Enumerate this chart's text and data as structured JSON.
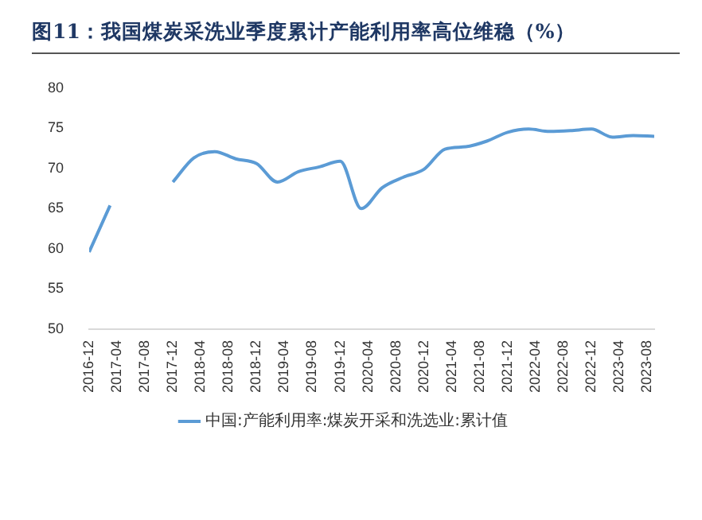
{
  "chart_data": {
    "type": "line",
    "title": "图11：我国煤炭采洗业季度累计产能利用率高位维稳（%）",
    "x": [
      "2016-12",
      "2017-03",
      "2017-06",
      "2017-09",
      "2017-12",
      "2018-03",
      "2018-06",
      "2018-09",
      "2018-12",
      "2019-03",
      "2019-06",
      "2019-09",
      "2019-12",
      "2020-03",
      "2020-06",
      "2020-09",
      "2020-12",
      "2021-03",
      "2021-06",
      "2021-09",
      "2021-12",
      "2022-03",
      "2022-06",
      "2022-09",
      "2022-12",
      "2023-03",
      "2023-06",
      "2023-09"
    ],
    "series": [
      {
        "name": "中国:产能利用率:煤炭开采和洗选业:累计值",
        "color": "#5b9bd5",
        "values": [
          59.6,
          65.4,
          null,
          null,
          68.3,
          71.3,
          72.1,
          71.2,
          70.6,
          68.3,
          69.6,
          70.2,
          70.9,
          65.0,
          67.6,
          68.9,
          69.9,
          72.4,
          72.7,
          73.4,
          74.5,
          74.9,
          74.6,
          74.7,
          74.9,
          73.9,
          74.1,
          74.0
        ]
      }
    ],
    "xlim": [
      "2016-12",
      "2023-09"
    ],
    "xticks": [
      "2016-12",
      "2017-04",
      "2017-08",
      "2017-12",
      "2018-04",
      "2018-08",
      "2018-12",
      "2019-04",
      "2019-08",
      "2019-12",
      "2020-04",
      "2020-08",
      "2020-12",
      "2021-04",
      "2021-08",
      "2021-12",
      "2022-04",
      "2022-08",
      "2022-12",
      "2023-04",
      "2023-08"
    ],
    "ylim": [
      50,
      80
    ],
    "yticks": [
      50,
      55,
      60,
      65,
      70,
      75,
      80
    ],
    "grid": false,
    "legend": "bottom",
    "marker": "none",
    "line_style": "solid"
  }
}
